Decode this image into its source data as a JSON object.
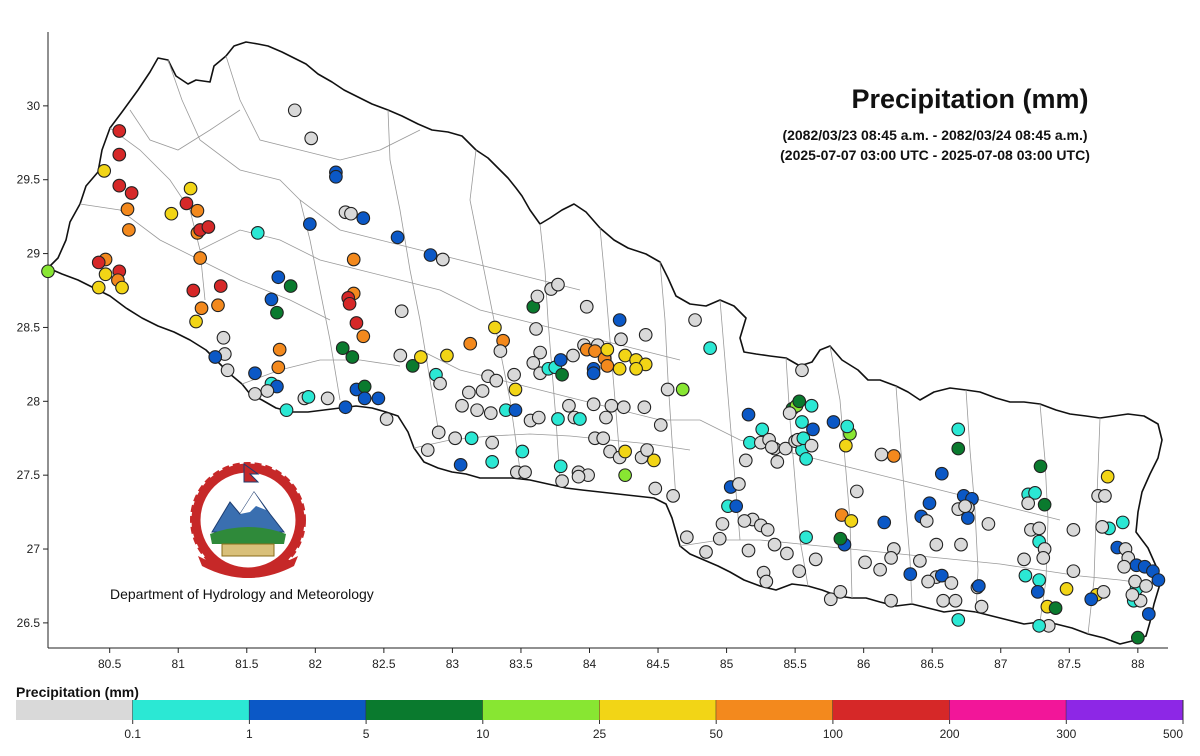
{
  "chart_data": {
    "type": "scatter",
    "title": "Precipitation (mm)",
    "subtitle_local": "(2082/03/23 08:45 a.m. - 2082/03/24 08:45 a.m.)",
    "subtitle_utc": "(2025-07-07 03:00 UTC - 2025-07-08 03:00 UTC)",
    "organization": "Department of Hydrology and Meteorology",
    "xlim": [
      80.05,
      88.22
    ],
    "ylim": [
      26.33,
      30.5
    ],
    "x_ticks": [
      "80.5",
      "81",
      "81.5",
      "82",
      "82.5",
      "83",
      "83.5",
      "84",
      "84.5",
      "85",
      "85.5",
      "86",
      "86.5",
      "87",
      "87.5",
      "88"
    ],
    "y_ticks": [
      "26.5",
      "27",
      "27.5",
      "28",
      "28.5",
      "29",
      "29.5",
      "30"
    ],
    "legend": {
      "title": "Precipitation (mm)",
      "classes": [
        {
          "label": "0.1",
          "color": "#d9d9d9"
        },
        {
          "label": "1",
          "color": "#2be8d4"
        },
        {
          "label": "5",
          "color": "#0b58c6"
        },
        {
          "label": "10",
          "color": "#0a7a2e"
        },
        {
          "label": "25",
          "color": "#88e632"
        },
        {
          "label": "50",
          "color": "#f2d516"
        },
        {
          "label": "100",
          "color": "#f3891d"
        },
        {
          "label": "200",
          "color": "#d62828"
        },
        {
          "label": "300",
          "color": "#f21699"
        },
        {
          "label": "500",
          "color": "#8d27e6"
        }
      ]
    },
    "stations": [
      [
        80.05,
        28.88,
        4
      ],
      [
        80.57,
        29.83,
        7
      ],
      [
        80.57,
        29.67,
        7
      ],
      [
        80.57,
        29.46,
        7
      ],
      [
        80.66,
        29.41,
        7
      ],
      [
        80.46,
        29.56,
        5
      ],
      [
        80.63,
        29.3,
        6
      ],
      [
        80.64,
        29.16,
        6
      ],
      [
        80.47,
        28.96,
        6
      ],
      [
        80.57,
        28.88,
        7
      ],
      [
        80.56,
        28.82,
        6
      ],
      [
        80.47,
        28.86,
        5
      ],
      [
        80.59,
        28.77,
        5
      ],
      [
        80.42,
        28.77,
        5
      ],
      [
        80.42,
        28.94,
        7
      ],
      [
        81.09,
        29.44,
        5
      ],
      [
        80.95,
        29.27,
        5
      ],
      [
        81.06,
        29.34,
        7
      ],
      [
        81.14,
        29.29,
        6
      ],
      [
        81.14,
        29.14,
        6
      ],
      [
        81.16,
        29.16,
        7
      ],
      [
        81.22,
        29.18,
        7
      ],
      [
        81.16,
        28.97,
        6
      ],
      [
        81.11,
        28.75,
        7
      ],
      [
        81.17,
        28.63,
        6
      ],
      [
        81.29,
        28.65,
        6
      ],
      [
        81.31,
        28.78,
        7
      ],
      [
        81.13,
        28.54,
        5
      ],
      [
        81.33,
        28.43,
        0
      ],
      [
        81.34,
        28.32,
        0
      ],
      [
        81.27,
        28.3,
        2
      ],
      [
        81.36,
        28.21,
        0
      ],
      [
        81.56,
        28.19,
        2
      ],
      [
        81.68,
        28.12,
        1
      ],
      [
        81.72,
        28.1,
        2
      ],
      [
        81.65,
        28.07,
        0
      ],
      [
        81.58,
        29.14,
        1
      ],
      [
        81.73,
        28.84,
        2
      ],
      [
        81.82,
        28.78,
        3
      ],
      [
        81.68,
        28.69,
        2
      ],
      [
        81.72,
        28.6,
        3
      ],
      [
        81.74,
        28.35,
        6
      ],
      [
        81.73,
        28.23,
        6
      ],
      [
        81.56,
        28.05,
        0
      ],
      [
        81.79,
        27.94,
        1
      ],
      [
        81.92,
        28.02,
        0
      ],
      [
        81.95,
        28.03,
        1
      ],
      [
        82.09,
        28.02,
        0
      ],
      [
        82.22,
        27.96,
        2
      ],
      [
        82.3,
        28.08,
        2
      ],
      [
        82.36,
        28.1,
        3
      ],
      [
        82.36,
        28.02,
        2
      ],
      [
        82.46,
        28.02,
        2
      ],
      [
        82.52,
        27.88,
        0
      ],
      [
        81.85,
        29.97,
        0
      ],
      [
        81.97,
        29.78,
        0
      ],
      [
        82.15,
        29.55,
        2
      ],
      [
        82.15,
        29.52,
        2
      ],
      [
        82.22,
        29.28,
        0
      ],
      [
        82.26,
        29.27,
        0
      ],
      [
        82.35,
        29.24,
        2
      ],
      [
        81.96,
        29.2,
        2
      ],
      [
        82.6,
        29.11,
        2
      ],
      [
        82.84,
        28.99,
        2
      ],
      [
        82.93,
        28.96,
        0
      ],
      [
        82.28,
        28.96,
        6
      ],
      [
        82.28,
        28.73,
        6
      ],
      [
        82.24,
        28.7,
        7
      ],
      [
        82.25,
        28.66,
        7
      ],
      [
        82.3,
        28.53,
        7
      ],
      [
        82.35,
        28.44,
        6
      ],
      [
        82.2,
        28.36,
        3
      ],
      [
        82.27,
        28.3,
        3
      ],
      [
        82.63,
        28.61,
        0
      ],
      [
        82.62,
        28.31,
        0
      ],
      [
        82.71,
        28.24,
        3
      ],
      [
        82.77,
        28.3,
        5
      ],
      [
        82.88,
        28.18,
        1
      ],
      [
        82.91,
        28.12,
        0
      ],
      [
        82.96,
        28.31,
        5
      ],
      [
        83.13,
        28.39,
        6
      ],
      [
        83.31,
        28.5,
        5
      ],
      [
        83.37,
        28.41,
        6
      ],
      [
        83.35,
        28.34,
        0
      ],
      [
        83.26,
        28.17,
        0
      ],
      [
        83.45,
        28.18,
        0
      ],
      [
        83.46,
        28.08,
        5
      ],
      [
        83.32,
        28.14,
        0
      ],
      [
        83.22,
        28.07,
        0
      ],
      [
        83.12,
        28.06,
        0
      ],
      [
        83.07,
        27.97,
        0
      ],
      [
        83.18,
        27.94,
        0
      ],
      [
        83.28,
        27.92,
        0
      ],
      [
        83.39,
        27.94,
        1
      ],
      [
        83.46,
        27.94,
        2
      ],
      [
        83.57,
        27.87,
        0
      ],
      [
        83.63,
        27.89,
        0
      ],
      [
        83.77,
        27.88,
        1
      ],
      [
        83.89,
        27.89,
        0
      ],
      [
        83.93,
        27.88,
        1
      ],
      [
        84.12,
        27.89,
        0
      ],
      [
        83.02,
        27.75,
        0
      ],
      [
        82.9,
        27.79,
        0
      ],
      [
        82.82,
        27.67,
        0
      ],
      [
        83.14,
        27.75,
        1
      ],
      [
        83.29,
        27.72,
        0
      ],
      [
        83.06,
        27.57,
        2
      ],
      [
        83.29,
        27.59,
        1
      ],
      [
        83.47,
        27.52,
        0
      ],
      [
        83.53,
        27.52,
        0
      ],
      [
        83.51,
        27.66,
        1
      ],
      [
        83.59,
        28.64,
        3
      ],
      [
        83.61,
        28.49,
        0
      ],
      [
        83.62,
        28.71,
        0
      ],
      [
        83.72,
        28.76,
        0
      ],
      [
        83.77,
        28.79,
        0
      ],
      [
        83.98,
        28.64,
        0
      ],
      [
        83.64,
        28.33,
        0
      ],
      [
        83.59,
        28.26,
        0
      ],
      [
        83.64,
        28.19,
        0
      ],
      [
        83.7,
        28.22,
        1
      ],
      [
        83.75,
        28.23,
        1
      ],
      [
        83.79,
        28.28,
        2
      ],
      [
        83.8,
        28.18,
        3
      ],
      [
        83.88,
        28.31,
        0
      ],
      [
        83.96,
        28.38,
        0
      ],
      [
        84.06,
        28.38,
        0
      ],
      [
        83.98,
        28.35,
        6
      ],
      [
        84.04,
        28.34,
        6
      ],
      [
        84.11,
        28.29,
        6
      ],
      [
        84.03,
        28.22,
        2
      ],
      [
        84.03,
        28.19,
        2
      ],
      [
        84.13,
        28.35,
        5
      ],
      [
        84.13,
        28.24,
        6
      ],
      [
        84.22,
        28.22,
        5
      ],
      [
        84.26,
        28.31,
        5
      ],
      [
        84.34,
        28.28,
        5
      ],
      [
        84.41,
        28.25,
        5
      ],
      [
        84.34,
        28.22,
        5
      ],
      [
        84.23,
        28.42,
        0
      ],
      [
        84.22,
        28.55,
        2
      ],
      [
        84.41,
        28.45,
        0
      ],
      [
        84.16,
        27.97,
        0
      ],
      [
        84.03,
        27.98,
        0
      ],
      [
        83.85,
        27.97,
        0
      ],
      [
        84.25,
        27.96,
        0
      ],
      [
        84.4,
        27.96,
        0
      ],
      [
        84.52,
        27.84,
        0
      ],
      [
        84.57,
        28.08,
        0
      ],
      [
        84.68,
        28.08,
        4
      ],
      [
        84.77,
        28.55,
        0
      ],
      [
        84.88,
        28.36,
        1
      ],
      [
        84.15,
        27.66,
        0
      ],
      [
        84.22,
        27.62,
        0
      ],
      [
        84.26,
        27.66,
        5
      ],
      [
        84.38,
        27.62,
        0
      ],
      [
        84.47,
        27.6,
        5
      ],
      [
        84.26,
        27.5,
        4
      ],
      [
        84.48,
        27.41,
        0
      ],
      [
        84.61,
        27.36,
        0
      ],
      [
        83.92,
        27.52,
        0
      ],
      [
        83.99,
        27.5,
        0
      ],
      [
        83.92,
        27.49,
        0
      ],
      [
        83.79,
        27.56,
        1
      ],
      [
        83.8,
        27.46,
        0
      ],
      [
        84.42,
        27.67,
        0
      ],
      [
        84.04,
        27.75,
        0
      ],
      [
        84.1,
        27.75,
        0
      ],
      [
        84.85,
        26.98,
        0
      ],
      [
        84.71,
        27.08,
        0
      ],
      [
        84.95,
        27.07,
        0
      ],
      [
        84.97,
        27.17,
        0
      ],
      [
        85.01,
        27.29,
        1
      ],
      [
        85.07,
        27.29,
        2
      ],
      [
        85.03,
        27.42,
        2
      ],
      [
        85.09,
        27.44,
        0
      ],
      [
        85.19,
        27.2,
        0
      ],
      [
        85.25,
        27.16,
        0
      ],
      [
        85.13,
        27.19,
        0
      ],
      [
        85.3,
        27.13,
        0
      ],
      [
        85.35,
        27.03,
        0
      ],
      [
        85.44,
        26.97,
        0
      ],
      [
        85.53,
        26.85,
        0
      ],
      [
        85.65,
        26.93,
        0
      ],
      [
        85.76,
        26.66,
        0
      ],
      [
        85.83,
        26.71,
        0
      ],
      [
        85.27,
        26.84,
        0
      ],
      [
        85.29,
        26.78,
        0
      ],
      [
        85.16,
        26.99,
        0
      ],
      [
        85.14,
        27.6,
        0
      ],
      [
        85.17,
        27.72,
        1
      ],
      [
        85.25,
        27.72,
        0
      ],
      [
        85.26,
        27.81,
        1
      ],
      [
        85.31,
        27.74,
        0
      ],
      [
        85.35,
        27.68,
        0
      ],
      [
        85.37,
        27.59,
        0
      ],
      [
        85.33,
        27.69,
        0
      ],
      [
        85.43,
        27.68,
        0
      ],
      [
        85.5,
        27.73,
        0
      ],
      [
        85.55,
        27.67,
        1
      ],
      [
        85.58,
        27.61,
        1
      ],
      [
        85.52,
        27.74,
        0
      ],
      [
        85.56,
        27.75,
        1
      ],
      [
        85.62,
        27.7,
        0
      ],
      [
        85.55,
        27.86,
        1
      ],
      [
        85.63,
        27.81,
        2
      ],
      [
        85.48,
        27.95,
        3
      ],
      [
        85.51,
        27.97,
        4
      ],
      [
        85.53,
        28.0,
        3
      ],
      [
        85.62,
        27.97,
        1
      ],
      [
        85.46,
        27.92,
        0
      ],
      [
        85.55,
        28.21,
        0
      ],
      [
        85.16,
        27.91,
        2
      ],
      [
        85.58,
        27.08,
        1
      ],
      [
        85.9,
        27.78,
        4
      ],
      [
        85.88,
        27.83,
        1
      ],
      [
        85.78,
        27.86,
        2
      ],
      [
        85.87,
        27.7,
        5
      ],
      [
        85.84,
        27.23,
        6
      ],
      [
        85.91,
        27.19,
        5
      ],
      [
        85.95,
        27.39,
        0
      ],
      [
        85.86,
        27.03,
        2
      ],
      [
        85.83,
        27.07,
        3
      ],
      [
        86.13,
        27.64,
        0
      ],
      [
        86.22,
        27.63,
        6
      ],
      [
        86.15,
        27.18,
        2
      ],
      [
        86.22,
        27.0,
        0
      ],
      [
        86.2,
        26.94,
        0
      ],
      [
        86.12,
        26.86,
        0
      ],
      [
        86.01,
        26.91,
        0
      ],
      [
        86.2,
        26.65,
        0
      ],
      [
        86.34,
        26.83,
        2
      ],
      [
        86.41,
        26.92,
        0
      ],
      [
        86.42,
        27.22,
        2
      ],
      [
        86.46,
        27.19,
        0
      ],
      [
        86.48,
        27.31,
        2
      ],
      [
        86.57,
        27.51,
        2
      ],
      [
        86.53,
        27.03,
        0
      ],
      [
        86.53,
        26.81,
        0
      ],
      [
        86.47,
        26.78,
        0
      ],
      [
        86.57,
        26.82,
        2
      ],
      [
        86.58,
        26.65,
        0
      ],
      [
        86.64,
        26.77,
        0
      ],
      [
        86.67,
        26.65,
        0
      ],
      [
        86.69,
        26.52,
        1
      ],
      [
        86.69,
        27.81,
        1
      ],
      [
        86.69,
        27.68,
        3
      ],
      [
        86.73,
        27.36,
        2
      ],
      [
        86.79,
        27.34,
        2
      ],
      [
        86.76,
        27.28,
        0
      ],
      [
        86.76,
        27.21,
        2
      ],
      [
        86.69,
        27.27,
        0
      ],
      [
        86.83,
        26.74,
        0
      ],
      [
        86.84,
        26.75,
        2
      ],
      [
        86.86,
        26.61,
        0
      ],
      [
        86.74,
        27.29,
        0
      ],
      [
        86.71,
        27.03,
        0
      ],
      [
        86.91,
        27.17,
        0
      ],
      [
        87.2,
        27.37,
        1
      ],
      [
        87.25,
        27.38,
        1
      ],
      [
        87.29,
        27.56,
        3
      ],
      [
        87.32,
        27.3,
        3
      ],
      [
        87.2,
        27.31,
        0
      ],
      [
        87.22,
        27.13,
        0
      ],
      [
        87.28,
        27.14,
        0
      ],
      [
        87.28,
        27.05,
        1
      ],
      [
        87.32,
        27.0,
        0
      ],
      [
        87.31,
        26.94,
        0
      ],
      [
        87.17,
        26.93,
        0
      ],
      [
        87.18,
        26.82,
        1
      ],
      [
        87.28,
        26.79,
        1
      ],
      [
        87.27,
        26.71,
        2
      ],
      [
        87.34,
        26.61,
        5
      ],
      [
        87.4,
        26.6,
        3
      ],
      [
        87.48,
        26.73,
        5
      ],
      [
        87.35,
        26.48,
        0
      ],
      [
        87.28,
        26.48,
        1
      ],
      [
        87.53,
        26.85,
        0
      ],
      [
        87.53,
        27.13,
        0
      ],
      [
        87.71,
        27.36,
        0
      ],
      [
        87.76,
        27.36,
        0
      ],
      [
        87.78,
        27.49,
        5
      ],
      [
        87.7,
        26.69,
        5
      ],
      [
        87.66,
        26.66,
        2
      ],
      [
        87.75,
        26.71,
        0
      ],
      [
        87.79,
        27.14,
        1
      ],
      [
        87.74,
        27.15,
        0
      ],
      [
        87.89,
        27.18,
        1
      ],
      [
        87.85,
        27.01,
        2
      ],
      [
        87.91,
        27.0,
        0
      ],
      [
        87.93,
        26.94,
        0
      ],
      [
        87.99,
        26.89,
        2
      ],
      [
        88.05,
        26.88,
        2
      ],
      [
        88.11,
        26.85,
        2
      ],
      [
        88.15,
        26.79,
        2
      ],
      [
        87.99,
        26.73,
        1
      ],
      [
        87.97,
        26.65,
        1
      ],
      [
        88.08,
        26.56,
        2
      ],
      [
        88.02,
        26.65,
        0
      ],
      [
        87.98,
        26.78,
        0
      ],
      [
        88.06,
        26.75,
        0
      ],
      [
        87.9,
        26.88,
        0
      ],
      [
        88.0,
        26.4,
        3
      ],
      [
        87.96,
        26.69,
        0
      ]
    ]
  }
}
